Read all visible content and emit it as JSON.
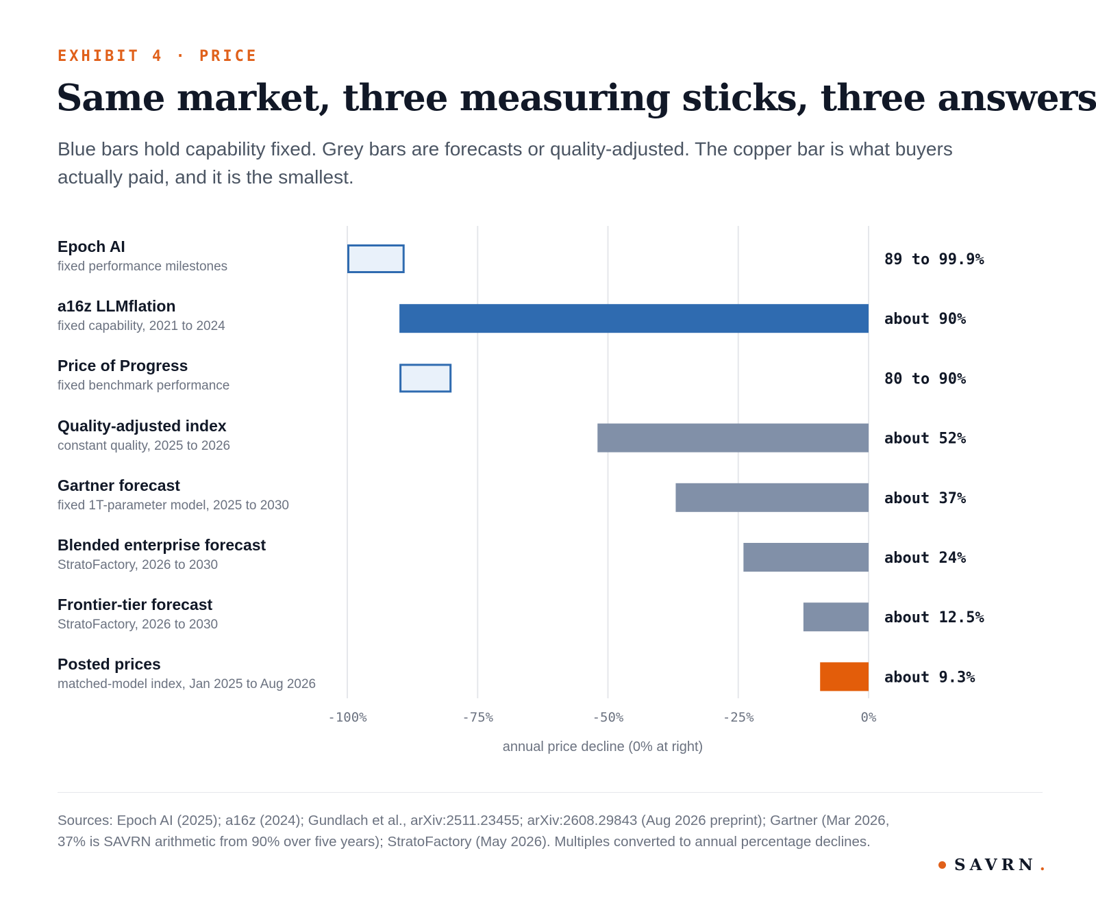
{
  "header": {
    "eyebrow": "EXHIBIT 4 · PRICE",
    "title": "Same market, three measuring sticks, three answers",
    "subtitle": "Blue bars hold capability fixed. Grey bars are forecasts or quality-adjusted. The copper bar is what buyers actually paid, and it is the smallest."
  },
  "colors": {
    "blue": "#2f6bb0",
    "blue_light_fill": "#e9f1fa",
    "grey": "#8190a8",
    "copper": "#e35d0a",
    "accent": "#e0601a"
  },
  "chart_data": {
    "type": "bar",
    "orientation": "horizontal",
    "categories": [
      "Epoch AI",
      "a16z LLMflation",
      "Price of Progress",
      "Quality-adjusted index",
      "Gartner forecast",
      "Blended enterprise forecast",
      "Frontier-tier forecast",
      "Posted prices"
    ],
    "descriptions": [
      "fixed performance milestones",
      "fixed capability, 2021 to 2024",
      "fixed benchmark performance",
      "constant quality, 2025 to 2026",
      "fixed 1T-parameter model, 2025 to 2030",
      "StratoFactory, 2026 to 2030",
      "StratoFactory, 2026 to 2030",
      "matched-model index, Jan 2025 to Aug 2026"
    ],
    "bars": [
      {
        "start": -100,
        "end": -89,
        "style": "blue-outline",
        "label": "89 to 99.9%"
      },
      {
        "start": -90,
        "end": 0,
        "style": "blue",
        "label": "about 90%"
      },
      {
        "start": -90,
        "end": -80,
        "style": "blue-outline",
        "label": "80 to 90%"
      },
      {
        "start": -52,
        "end": 0,
        "style": "grey",
        "label": "about 52%"
      },
      {
        "start": -37,
        "end": 0,
        "style": "grey",
        "label": "about 37%"
      },
      {
        "start": -24,
        "end": 0,
        "style": "grey",
        "label": "about 24%"
      },
      {
        "start": -12.5,
        "end": 0,
        "style": "grey",
        "label": "about 12.5%"
      },
      {
        "start": -9.3,
        "end": 0,
        "style": "copper",
        "label": "about 9.3%"
      }
    ],
    "xlim": [
      -100,
      0
    ],
    "xticks": [
      -100,
      -75,
      -50,
      -25,
      0
    ],
    "xtick_labels": [
      "-100%",
      "-75%",
      "-50%",
      "-25%",
      "0%"
    ],
    "xlabel": "annual price decline (0% at right)",
    "grid": true
  },
  "footer": {
    "sources": "Sources: Epoch AI (2025); a16z (2024); Gundlach et al., arXiv:2511.23455; arXiv:2608.29843 (Aug 2026 preprint); Gartner (Mar 2026, 37% is SAVRN arithmetic from 90% over five years); StratoFactory (May 2026). Multiples converted to annual percentage declines.",
    "brand": "SAVRN",
    "brand_period": "."
  }
}
